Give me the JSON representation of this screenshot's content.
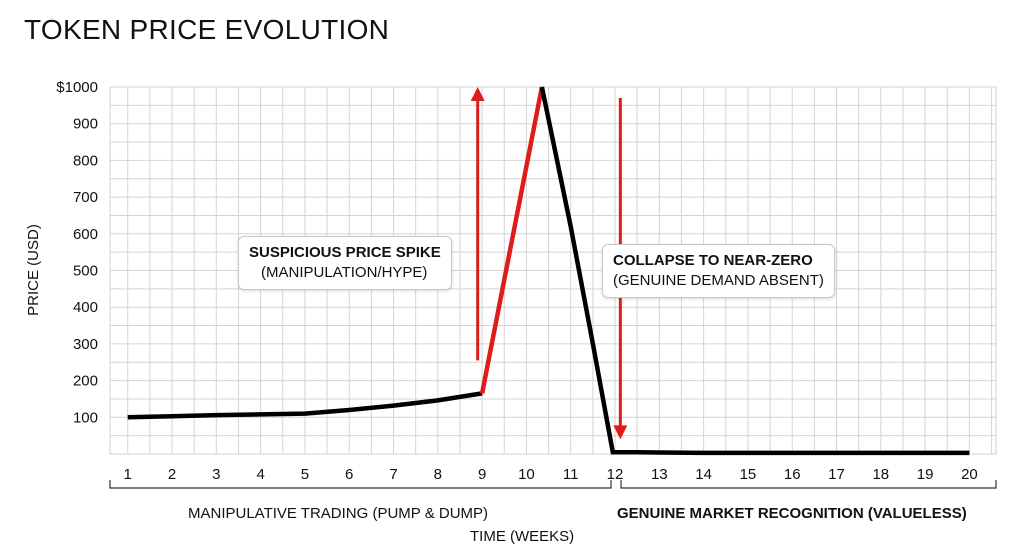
{
  "title": "TOKEN PRICE EVOLUTION",
  "chart_data": {
    "type": "line",
    "title": "TOKEN PRICE EVOLUTION",
    "xlabel": "TIME (WEEKS)",
    "ylabel": "PRICE (USD)",
    "xlim": [
      0.6,
      20.6
    ],
    "ylim": [
      0,
      1000
    ],
    "x_ticks": [
      "1",
      "2",
      "3",
      "4",
      "5",
      "6",
      "7",
      "8",
      "9",
      "10",
      "11",
      "12",
      "13",
      "14",
      "15",
      "16",
      "17",
      "18",
      "19",
      "20"
    ],
    "y_ticks": [
      {
        "value": 100,
        "label": "100"
      },
      {
        "value": 200,
        "label": "200"
      },
      {
        "value": 300,
        "label": "300"
      },
      {
        "value": 400,
        "label": "400"
      },
      {
        "value": 500,
        "label": "500"
      },
      {
        "value": 600,
        "label": "600"
      },
      {
        "value": 700,
        "label": "700"
      },
      {
        "value": 800,
        "label": "800"
      },
      {
        "value": 900,
        "label": "900"
      },
      {
        "value": 1000,
        "label": "$1000"
      }
    ],
    "grid": true,
    "series": [
      {
        "color": "#000000",
        "points": [
          [
            1,
            100
          ],
          [
            2,
            103
          ],
          [
            3,
            106
          ],
          [
            4,
            108
          ],
          [
            5,
            110
          ],
          [
            6,
            120
          ],
          [
            7,
            132
          ],
          [
            8,
            146
          ],
          [
            9,
            165
          ]
        ]
      },
      {
        "color": "#e01b1b",
        "points": [
          [
            9,
            165
          ],
          [
            10.35,
            1000
          ]
        ]
      },
      {
        "color": "#000000",
        "points": [
          [
            10.35,
            1000
          ],
          [
            11,
            620
          ],
          [
            11.5,
            300
          ],
          [
            11.95,
            5
          ],
          [
            12.5,
            5
          ],
          [
            13,
            4
          ],
          [
            14,
            3
          ],
          [
            15,
            3
          ],
          [
            16,
            3
          ],
          [
            17,
            3
          ],
          [
            18,
            3
          ],
          [
            19,
            3
          ],
          [
            20,
            3
          ]
        ]
      }
    ],
    "arrows": [
      {
        "direction": "up",
        "x": 8.9,
        "from": 255,
        "to": 1000,
        "color": "#e01b1b"
      },
      {
        "direction": "down",
        "x": 12.12,
        "from": 970,
        "to": 40,
        "color": "#e01b1b"
      }
    ],
    "annotations": [
      {
        "line1": "SUSPICIOUS PRICE SPIKE",
        "line2": "(MANIPULATION/HYPE)"
      },
      {
        "line1": "COLLAPSE TO NEAR-ZERO",
        "line2": "(GENUINE DEMAND ABSENT)"
      }
    ],
    "phases": [
      {
        "label": "MANIPULATIVE TRADING (PUMP & DUMP)",
        "from": 1,
        "to": 12
      },
      {
        "label": "GENUINE MARKET RECOGNITION (VALUELESS)",
        "from": 12,
        "to": 20
      }
    ]
  }
}
